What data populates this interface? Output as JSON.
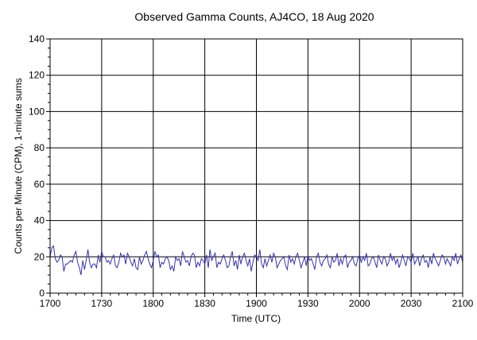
{
  "chart_data": {
    "type": "line",
    "title": "Observed Gamma Counts, AJ4CO, 18 Aug 2020",
    "xlabel": "Time (UTC)",
    "ylabel": "Counts per Minute (CPM), 1-minute sums",
    "x_ticks": [
      "1700",
      "1730",
      "1800",
      "1830",
      "1900",
      "1930",
      "2000",
      "2030",
      "2100"
    ],
    "y_ticks": [
      "0",
      "20",
      "40",
      "60",
      "80",
      "100",
      "120",
      "140"
    ],
    "xlim_minutes": [
      0,
      240
    ],
    "ylim": [
      0,
      140
    ],
    "grid": true,
    "line_color": "#3333aa",
    "series": [
      {
        "values": [
          20,
          25,
          26,
          19,
          17,
          18,
          21,
          20,
          12,
          16,
          16,
          17,
          18,
          17,
          21,
          23,
          17,
          14,
          10,
          18,
          13,
          18,
          24,
          17,
          14,
          16,
          16,
          14,
          21,
          17,
          23,
          20,
          20,
          17,
          18,
          16,
          19,
          21,
          15,
          14,
          17,
          22,
          20,
          21,
          16,
          22,
          20,
          17,
          15,
          19,
          14,
          13,
          20,
          16,
          18,
          21,
          23,
          19,
          16,
          14,
          18,
          23,
          20,
          21,
          14,
          17,
          16,
          19,
          20,
          18,
          13,
          15,
          12,
          20,
          18,
          19,
          15,
          23,
          20,
          17,
          18,
          15,
          20,
          22,
          21,
          14,
          17,
          15,
          19,
          18,
          16,
          21,
          14,
          24,
          18,
          20,
          22,
          14,
          17,
          16,
          19,
          21,
          18,
          14,
          15,
          20,
          23,
          15,
          18,
          13,
          21,
          16,
          20,
          22,
          18,
          15,
          19,
          12,
          17,
          21,
          20,
          18,
          24,
          16,
          14,
          19,
          15,
          18,
          21,
          17,
          22,
          20,
          14,
          16,
          18,
          19,
          20,
          15,
          13,
          21,
          17,
          19,
          16,
          20,
          22,
          18,
          14,
          17,
          20,
          15,
          21,
          18,
          19,
          16,
          13,
          20,
          22,
          17,
          15,
          18,
          19,
          21,
          16,
          14,
          20,
          17,
          18,
          22,
          15,
          19,
          16,
          20,
          21,
          14,
          17,
          18,
          20,
          16,
          15,
          19,
          21,
          17,
          20,
          18,
          22,
          15,
          16,
          19,
          20,
          17,
          14,
          21,
          18,
          16,
          20,
          19,
          15,
          17,
          22,
          18,
          20,
          16,
          19,
          14,
          17,
          21,
          18,
          15,
          20,
          19,
          17,
          22,
          16,
          18,
          20,
          15,
          19,
          21,
          17,
          18,
          14,
          20,
          16,
          22,
          19,
          17,
          15,
          18,
          21,
          20,
          16,
          19,
          17,
          15,
          20,
          18,
          22,
          16,
          19,
          21,
          17
        ]
      }
    ]
  }
}
